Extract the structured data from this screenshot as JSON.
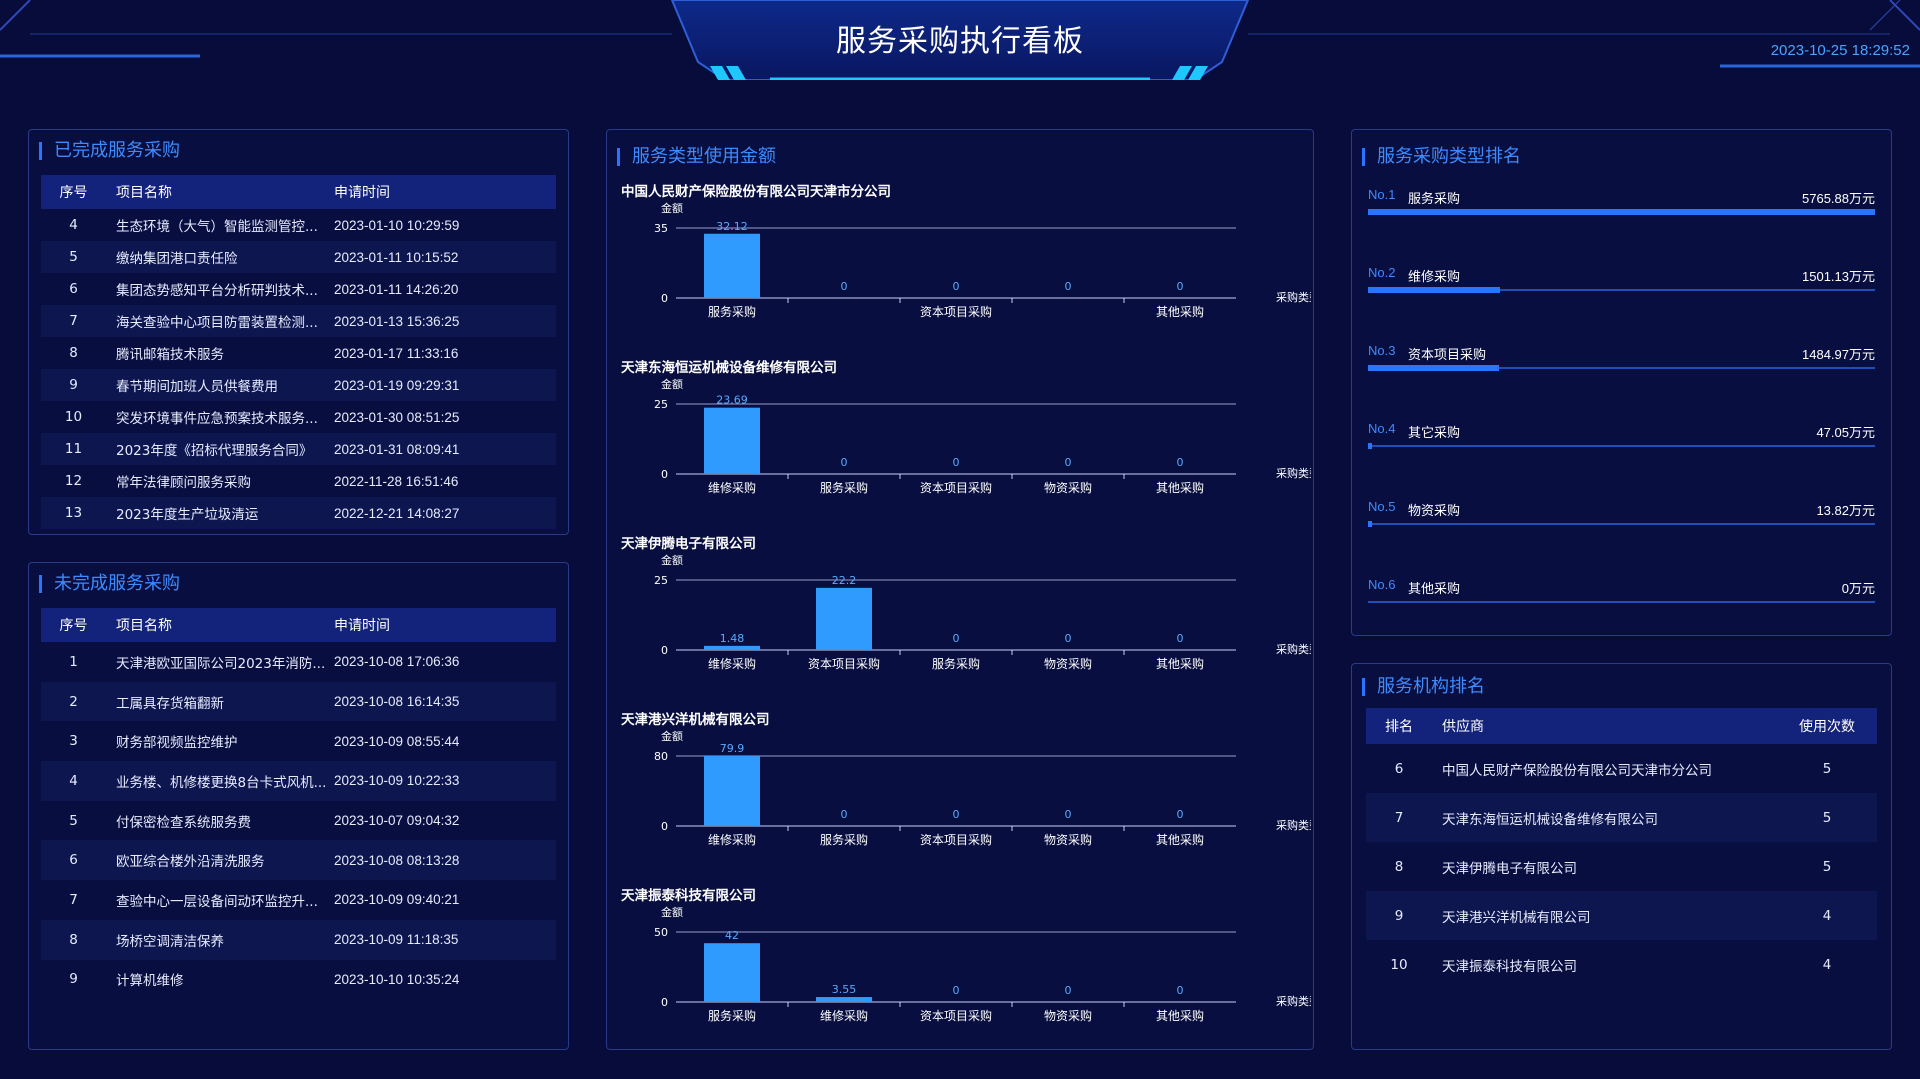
{
  "header": {
    "title": "服务采购执行看板",
    "datetime": "2023-10-25 18:29:52"
  },
  "completed": {
    "title": "已完成服务采购",
    "columns": {
      "no": "序号",
      "name": "项目名称",
      "time": "申请时间"
    },
    "rows": [
      {
        "no": "4",
        "name": "生态环境（大气）智能监测管控...",
        "time": "2023-01-10 10:29:59"
      },
      {
        "no": "5",
        "name": "缴纳集团港口责任险",
        "time": "2023-01-11 10:15:52"
      },
      {
        "no": "6",
        "name": "集团态势感知平台分析研判技术...",
        "time": "2023-01-11 14:26:20"
      },
      {
        "no": "7",
        "name": "海关查验中心项目防雷装置检测...",
        "time": "2023-01-13 15:36:25"
      },
      {
        "no": "8",
        "name": "腾讯邮箱技术服务",
        "time": "2023-01-17 11:33:16"
      },
      {
        "no": "9",
        "name": "春节期间加班人员供餐费用",
        "time": "2023-01-19 09:29:31"
      },
      {
        "no": "10",
        "name": "突发环境事件应急预案技术服务...",
        "time": "2023-01-30 08:51:25"
      },
      {
        "no": "11",
        "name": "2023年度《招标代理服务合同》",
        "time": "2023-01-31 08:09:41"
      },
      {
        "no": "12",
        "name": "常年法律顾问服务采购",
        "time": "2022-11-28 16:51:46"
      },
      {
        "no": "13",
        "name": "2023年度生产垃圾清运",
        "time": "2022-12-21 14:08:27"
      }
    ]
  },
  "incomplete": {
    "title": "未完成服务采购",
    "columns": {
      "no": "序号",
      "name": "项目名称",
      "time": "申请时间"
    },
    "rows": [
      {
        "no": "1",
        "name": "天津港欧亚国际公司2023年消防...",
        "time": "2023-10-08 17:06:36"
      },
      {
        "no": "2",
        "name": "工属具存货箱翻新",
        "time": "2023-10-08 16:14:35"
      },
      {
        "no": "3",
        "name": "财务部视频监控维护",
        "time": "2023-10-09 08:55:44"
      },
      {
        "no": "4",
        "name": "业务楼、机修楼更换8台卡式风机...",
        "time": "2023-10-09 10:22:33"
      },
      {
        "no": "5",
        "name": "付保密检查系统服务费",
        "time": "2023-10-07 09:04:32"
      },
      {
        "no": "6",
        "name": "欧亚综合楼外沿清洗服务",
        "time": "2023-10-08 08:13:28"
      },
      {
        "no": "7",
        "name": "查验中心一层设备间动环监控升...",
        "time": "2023-10-09 09:40:21"
      },
      {
        "no": "8",
        "name": "场桥空调清洁保养",
        "time": "2023-10-09 11:18:35"
      },
      {
        "no": "9",
        "name": "计算机维修",
        "time": "2023-10-10 10:35:24"
      }
    ]
  },
  "service_amount": {
    "title": "服务类型使用金额",
    "chart_data": [
      {
        "type": "bar",
        "title": "中国人民财产保险股份有限公司天津市分公司",
        "ylabel": "金额",
        "xlabel": "采购类型",
        "categories": [
          "服务采购",
          "",
          "资本项目采购",
          "",
          "其他采购"
        ],
        "values": [
          32.12,
          0,
          0,
          0,
          0
        ],
        "ylim": [
          0,
          35
        ],
        "yticks": [
          0,
          35
        ]
      },
      {
        "type": "bar",
        "title": "天津东海恒运机械设备维修有限公司",
        "ylabel": "金额",
        "xlabel": "采购类型",
        "categories": [
          "维修采购",
          "服务采购",
          "资本项目采购",
          "物资采购",
          "其他采购"
        ],
        "values": [
          23.69,
          0,
          0,
          0,
          0
        ],
        "ylim": [
          0,
          25
        ],
        "yticks": [
          0,
          25
        ]
      },
      {
        "type": "bar",
        "title": "天津伊腾电子有限公司",
        "ylabel": "金额",
        "xlabel": "采购类型",
        "categories": [
          "维修采购",
          "资本项目采购",
          "服务采购",
          "物资采购",
          "其他采购"
        ],
        "values": [
          1.48,
          22.2,
          0,
          0,
          0
        ],
        "ylim": [
          0,
          25
        ],
        "yticks": [
          0,
          25
        ]
      },
      {
        "type": "bar",
        "title": "天津港兴洋机械有限公司",
        "ylabel": "金额",
        "xlabel": "采购类型",
        "categories": [
          "维修采购",
          "服务采购",
          "资本项目采购",
          "物资采购",
          "其他采购"
        ],
        "values": [
          79.9,
          0,
          0,
          0,
          0
        ],
        "ylim": [
          0,
          80
        ],
        "yticks": [
          0,
          80
        ]
      },
      {
        "type": "bar",
        "title": "天津振泰科技有限公司",
        "ylabel": "金额",
        "xlabel": "采购类型",
        "categories": [
          "服务采购",
          "维修采购",
          "资本项目采购",
          "物资采购",
          "其他采购"
        ],
        "values": [
          42,
          3.55,
          0,
          0,
          0
        ],
        "ylim": [
          0,
          50
        ],
        "yticks": [
          0,
          50
        ]
      }
    ]
  },
  "type_ranking": {
    "title": "服务采购类型排名",
    "max": 5765.88,
    "items": [
      {
        "no": "No.1",
        "name": "服务采购",
        "value": 5765.88,
        "display": "5765.88万元"
      },
      {
        "no": "No.2",
        "name": "维修采购",
        "value": 1501.13,
        "display": "1501.13万元"
      },
      {
        "no": "No.3",
        "name": "资本项目采购",
        "value": 1484.97,
        "display": "1484.97万元"
      },
      {
        "no": "No.4",
        "name": "其它采购",
        "value": 47.05,
        "display": "47.05万元"
      },
      {
        "no": "No.5",
        "name": "物资采购",
        "value": 13.82,
        "display": "13.82万元"
      },
      {
        "no": "No.6",
        "name": "其他采购",
        "value": 0,
        "display": "0万元"
      }
    ]
  },
  "org_ranking": {
    "title": "服务机构排名",
    "columns": {
      "rank": "排名",
      "name": "供应商",
      "count": "使用次数"
    },
    "rows": [
      {
        "rank": "6",
        "name": "中国人民财产保险股份有限公司天津市分公司",
        "count": "5"
      },
      {
        "rank": "7",
        "name": "天津东海恒运机械设备维修有限公司",
        "count": "5"
      },
      {
        "rank": "8",
        "name": "天津伊腾电子有限公司",
        "count": "5"
      },
      {
        "rank": "9",
        "name": "天津港兴洋机械有限公司",
        "count": "4"
      },
      {
        "rank": "10",
        "name": "天津振泰科技有限公司",
        "count": "4"
      }
    ]
  },
  "colors": {
    "accent": "#2a75ff",
    "bar": "#2f9bff",
    "title": "#3d8bff",
    "bg": "#080c3a"
  }
}
